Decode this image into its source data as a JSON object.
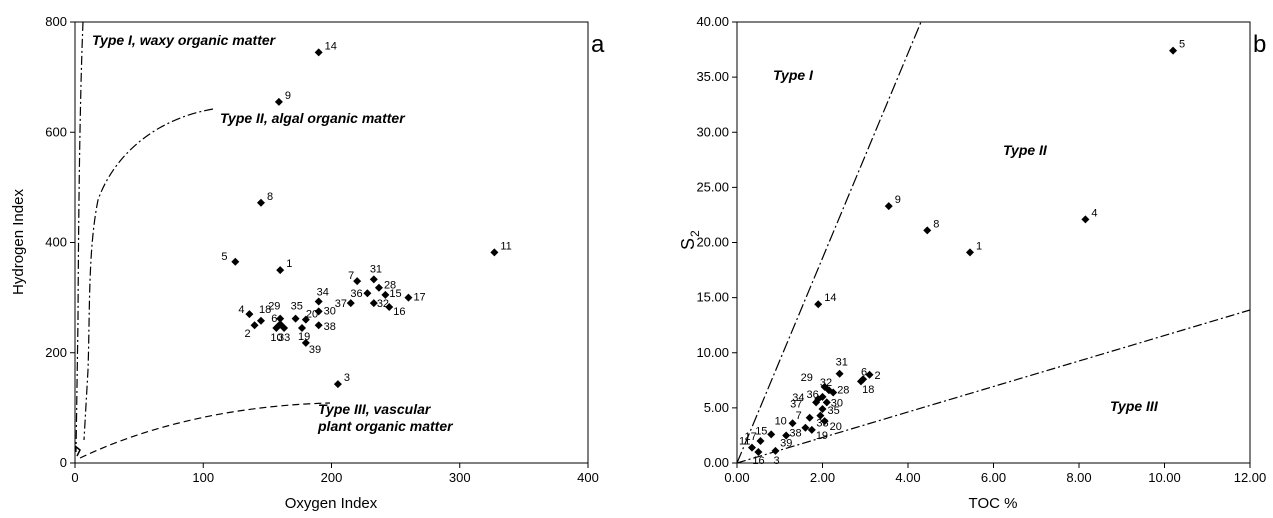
{
  "chart_data": [
    {
      "type": "scatter",
      "panel_label": "a",
      "xlabel": "Oxygen Index",
      "ylabel": "Hydrogen Index",
      "xlim": [
        0,
        400
      ],
      "ylim": [
        0,
        800
      ],
      "xticks": [
        "0",
        "100",
        "200",
        "300",
        "400"
      ],
      "yticks": [
        "0",
        "200",
        "400",
        "600",
        "800"
      ],
      "grid": false,
      "points": [
        {
          "label": "14",
          "x": 190,
          "y": 745
        },
        {
          "label": "9",
          "x": 159,
          "y": 655
        },
        {
          "label": "8",
          "x": 145,
          "y": 472
        },
        {
          "label": "11",
          "x": 327,
          "y": 382
        },
        {
          "label": "5",
          "x": 125,
          "y": 365
        },
        {
          "label": "1",
          "x": 160,
          "y": 350
        },
        {
          "label": "7",
          "x": 220,
          "y": 330
        },
        {
          "label": "31",
          "x": 233,
          "y": 333
        },
        {
          "label": "28",
          "x": 237,
          "y": 318
        },
        {
          "label": "36",
          "x": 228,
          "y": 308
        },
        {
          "label": "15",
          "x": 242,
          "y": 305
        },
        {
          "label": "17",
          "x": 260,
          "y": 300
        },
        {
          "label": "34",
          "x": 190,
          "y": 293
        },
        {
          "label": "37",
          "x": 215,
          "y": 290
        },
        {
          "label": "32",
          "x": 233,
          "y": 290
        },
        {
          "label": "16",
          "x": 245,
          "y": 283
        },
        {
          "label": "30",
          "x": 190,
          "y": 275
        },
        {
          "label": "4",
          "x": 136,
          "y": 270
        },
        {
          "label": "18",
          "x": 145,
          "y": 258
        },
        {
          "label": "29",
          "x": 160,
          "y": 262
        },
        {
          "label": "35",
          "x": 172,
          "y": 262
        },
        {
          "label": "20",
          "x": 180,
          "y": 260
        },
        {
          "label": "6",
          "x": 160,
          "y": 252
        },
        {
          "label": "38",
          "x": 190,
          "y": 250
        },
        {
          "label": "2",
          "x": 140,
          "y": 250
        },
        {
          "label": "10",
          "x": 157,
          "y": 245
        },
        {
          "label": "33",
          "x": 163,
          "y": 245
        },
        {
          "label": "19",
          "x": 177,
          "y": 245
        },
        {
          "label": "39",
          "x": 180,
          "y": 218
        },
        {
          "label": "3",
          "x": 205,
          "y": 143
        }
      ],
      "annotations": [
        "Type I, waxy organic matter",
        "Type II, algal organic matter",
        "Type III, vascular",
        "plant organic matter"
      ]
    },
    {
      "type": "scatter",
      "panel_label": "b",
      "xlabel": "TOC %",
      "ylabel": "S",
      "ylabel_sub": "2",
      "xlim": [
        0,
        12
      ],
      "ylim": [
        0,
        40
      ],
      "xticks": [
        "0.00",
        "2.00",
        "4.00",
        "6.00",
        "8.00",
        "10.00",
        "12.00"
      ],
      "yticks": [
        "0.00",
        "5.00",
        "10.00",
        "15.00",
        "20.00",
        "25.00",
        "30.00",
        "35.00",
        "40.00"
      ],
      "grid": false,
      "points": [
        {
          "label": "5",
          "x": 10.2,
          "y": 37.4
        },
        {
          "label": "9",
          "x": 3.55,
          "y": 23.3
        },
        {
          "label": "4",
          "x": 8.15,
          "y": 22.1
        },
        {
          "label": "8",
          "x": 4.45,
          "y": 21.1
        },
        {
          "label": "1",
          "x": 5.45,
          "y": 19.1
        },
        {
          "label": "14",
          "x": 1.9,
          "y": 14.4
        },
        {
          "label": "31",
          "x": 2.4,
          "y": 8.1
        },
        {
          "label": "6",
          "x": 2.9,
          "y": 7.4
        },
        {
          "label": "2",
          "x": 3.1,
          "y": 8.0
        },
        {
          "label": "29",
          "x": 2.05,
          "y": 6.9
        },
        {
          "label": "32",
          "x": 2.15,
          "y": 6.6
        },
        {
          "label": "28",
          "x": 2.25,
          "y": 6.4
        },
        {
          "label": "36",
          "x": 2.0,
          "y": 6.0
        },
        {
          "label": "34",
          "x": 1.9,
          "y": 5.8
        },
        {
          "label": "30",
          "x": 2.1,
          "y": 5.5
        },
        {
          "label": "37",
          "x": 1.85,
          "y": 5.5
        },
        {
          "label": "35",
          "x": 2.0,
          "y": 4.9
        },
        {
          "label": "33",
          "x": 1.95,
          "y": 4.3
        },
        {
          "label": "20",
          "x": 2.05,
          "y": 3.8
        },
        {
          "label": "7",
          "x": 1.7,
          "y": 4.1
        },
        {
          "label": "10",
          "x": 1.3,
          "y": 3.6
        },
        {
          "label": "38",
          "x": 1.6,
          "y": 3.2
        },
        {
          "label": "19",
          "x": 1.75,
          "y": 3.0
        },
        {
          "label": "15",
          "x": 0.8,
          "y": 2.6
        },
        {
          "label": "17",
          "x": 0.55,
          "y": 2.0
        },
        {
          "label": "39",
          "x": 1.15,
          "y": 2.5
        },
        {
          "label": "11",
          "x": 0.35,
          "y": 1.4
        },
        {
          "label": "16",
          "x": 0.5,
          "y": 1.0
        },
        {
          "label": "3",
          "x": 0.9,
          "y": 1.1
        },
        {
          "label": "18",
          "x": 2.95,
          "y": 7.6
        }
      ],
      "annotations": [
        "Type I",
        "Type II",
        "Type III"
      ]
    }
  ]
}
